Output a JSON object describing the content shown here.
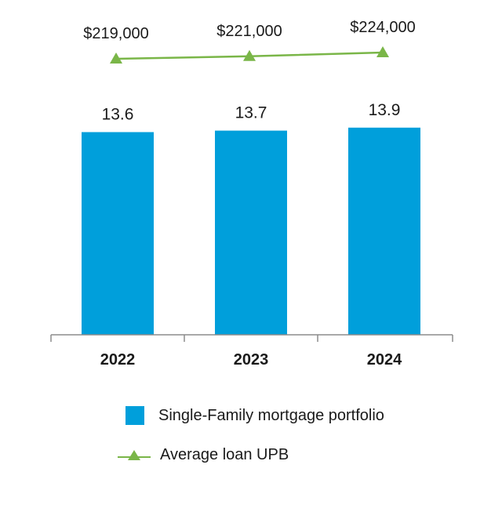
{
  "chart_data": {
    "type": "bar",
    "categories": [
      "2022",
      "2023",
      "2024"
    ],
    "series": [
      {
        "name": "Single-Family mortgage portfolio",
        "kind": "bar",
        "values": [
          13.6,
          13.7,
          13.9
        ],
        "labels": [
          "13.6",
          "13.7",
          "13.9"
        ],
        "color": "#009fdb"
      },
      {
        "name": "Average loan UPB",
        "kind": "line",
        "marker": "triangle",
        "values": [
          219000,
          221000,
          224000
        ],
        "labels": [
          "$219,000",
          "$221,000",
          "$224,000"
        ],
        "color": "#7ab648"
      }
    ],
    "title": "",
    "xlabel": "",
    "ylabel": "",
    "grid": false,
    "legend_position": "bottom"
  }
}
